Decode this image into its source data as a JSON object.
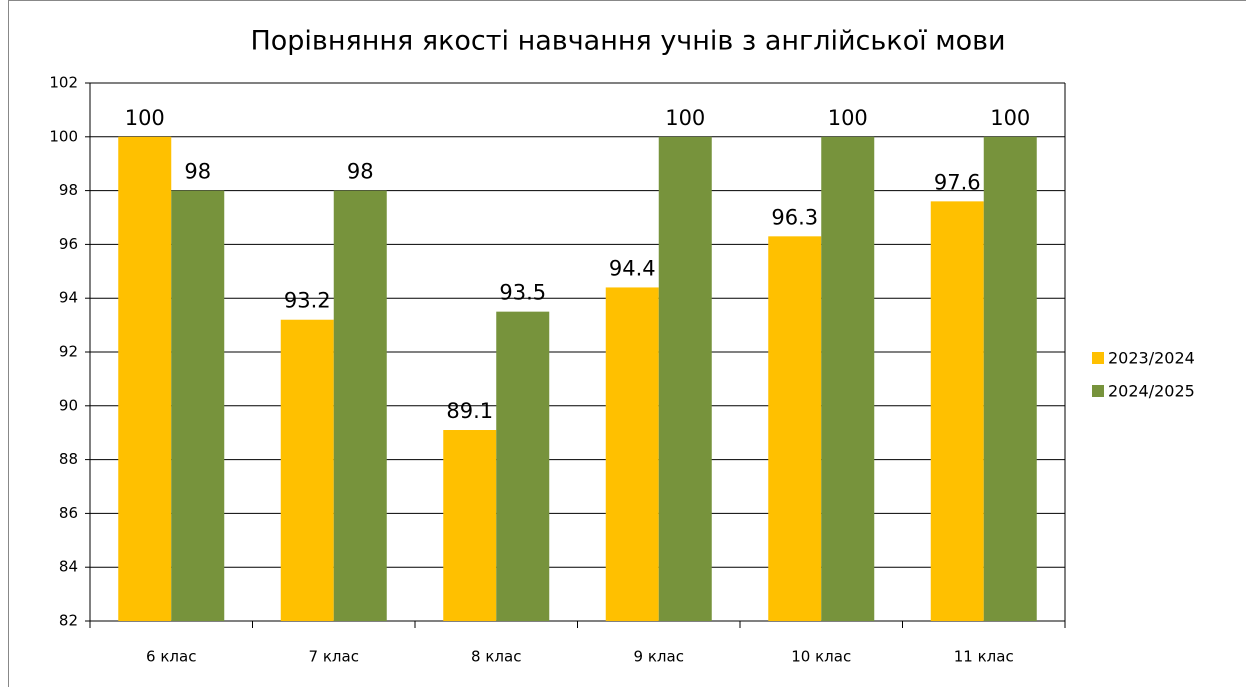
{
  "chart_data": {
    "type": "bar",
    "title": "Порівняння якості навчання учнів з англійської мови",
    "categories": [
      "6 клас",
      "7 клас",
      "8 клас",
      "9 клас",
      "10 клас",
      "11 клас"
    ],
    "series": [
      {
        "name": "2023/2024",
        "color": "#ffc000",
        "values": [
          100,
          93.2,
          89.1,
          94.4,
          96.3,
          97.6
        ]
      },
      {
        "name": "2024/2025",
        "color": "#77933c",
        "values": [
          98,
          98,
          93.5,
          100,
          100,
          100
        ]
      }
    ],
    "ylim": [
      82,
      102
    ],
    "yticks": [
      82,
      84,
      86,
      88,
      90,
      92,
      94,
      96,
      98,
      100,
      102
    ],
    "grid": true,
    "legend": "right"
  }
}
